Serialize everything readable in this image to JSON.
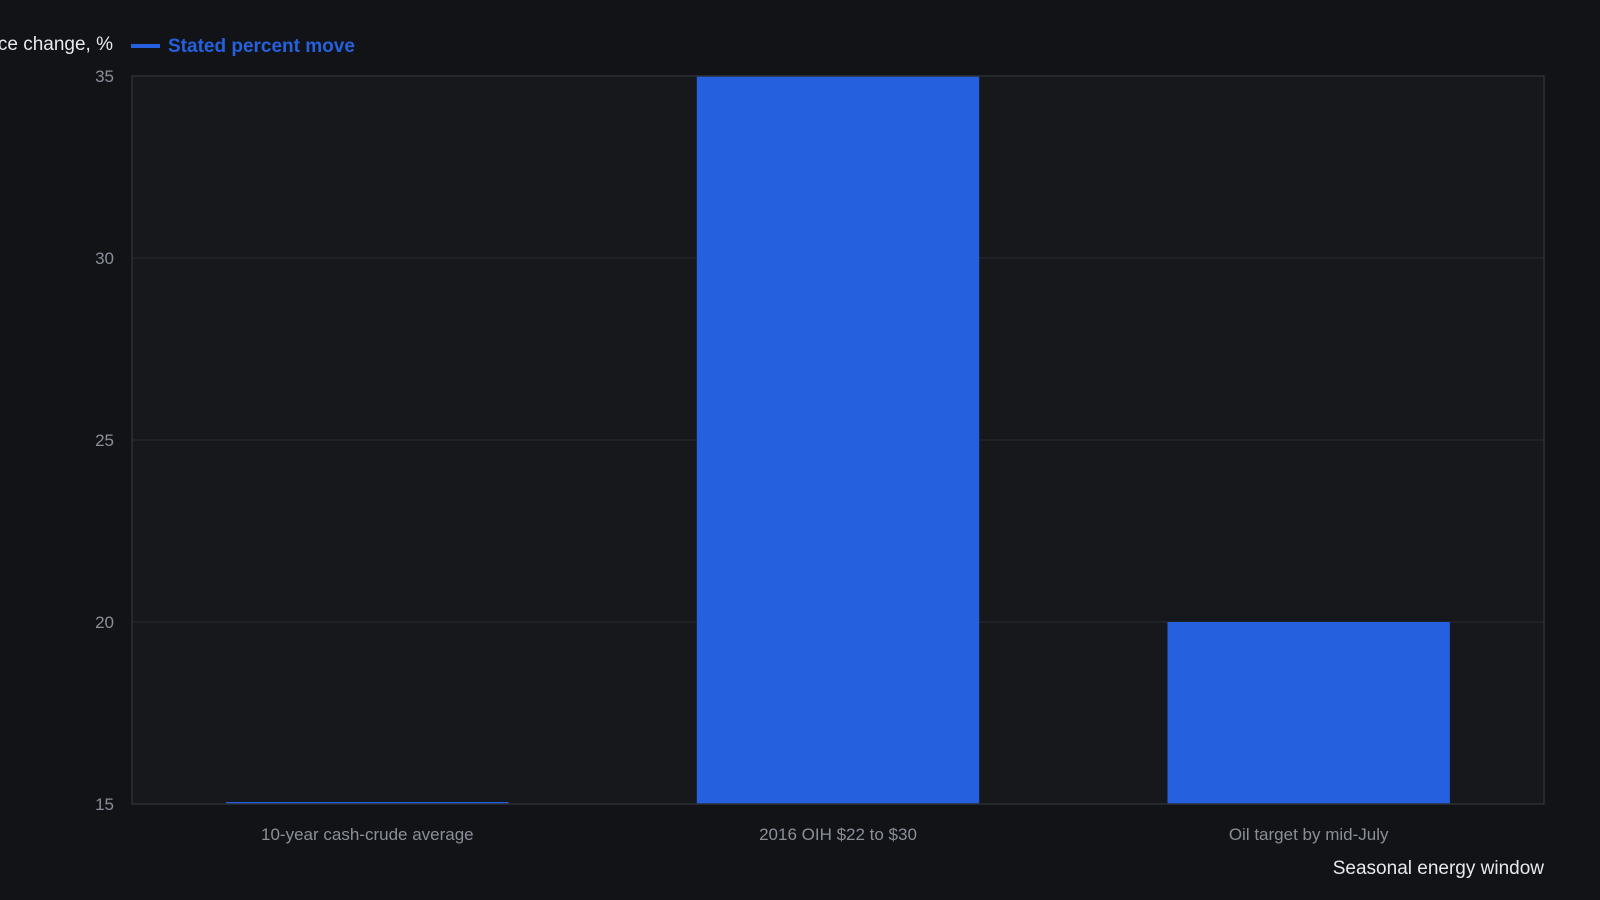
{
  "chart_data": {
    "type": "bar",
    "title": "",
    "xlabel": "Seasonal energy window",
    "ylabel": "Price change, %",
    "categories": [
      "10-year cash-crude average",
      "2016 OIH $22 to $30",
      "Oil target by mid-July"
    ],
    "series": [
      {
        "name": "Stated percent move",
        "values": [
          15,
          35,
          20
        ]
      }
    ],
    "ylim": [
      15,
      35
    ],
    "yticks": [
      15,
      20,
      25,
      30,
      35
    ],
    "grid": true,
    "legend_position": "top-left"
  },
  "colors": {
    "background": "#111317",
    "plot_background": "#16181c",
    "bar": "#2560de",
    "grid": "#262a30",
    "frame": "#2c3036",
    "tick_text": "#8a8f98",
    "axis_title_text": "#e6e8eb"
  }
}
